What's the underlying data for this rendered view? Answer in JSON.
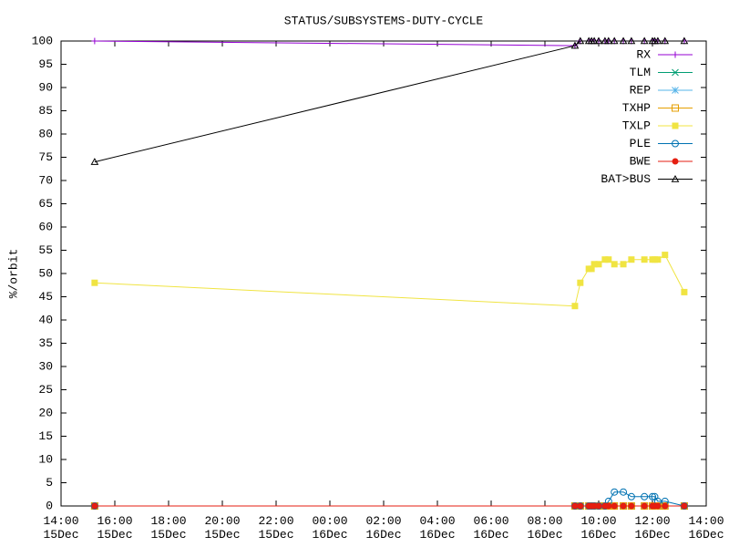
{
  "chart_data": {
    "type": "line",
    "title": "STATUS/SUBSYSTEMS-DUTY-CYCLE",
    "y_label": "%/orbit",
    "x": [
      "15Dec 15:15",
      "16Dec 09:07",
      "16Dec 09:19",
      "16Dec 09:38",
      "16Dec 09:44",
      "16Dec 09:50",
      "16Dec 10:00",
      "16Dec 10:14",
      "16Dec 10:22",
      "16Dec 10:35",
      "16Dec 10:55",
      "16Dec 11:13",
      "16Dec 11:42",
      "16Dec 12:00",
      "16Dec 12:05",
      "16Dec 12:12",
      "16Dec 12:28",
      "16Dec 13:11"
    ],
    "xlim": [
      "15Dec 14:00",
      "16Dec 14:00"
    ],
    "xticks": [
      {
        "value": "15Dec 14:00",
        "label": "14:00\n15Dec"
      },
      {
        "value": "15Dec 16:00",
        "label": "16:00\n15Dec"
      },
      {
        "value": "15Dec 18:00",
        "label": "18:00\n15Dec"
      },
      {
        "value": "15Dec 20:00",
        "label": "20:00\n15Dec"
      },
      {
        "value": "15Dec 22:00",
        "label": "22:00\n15Dec"
      },
      {
        "value": "16Dec 00:00",
        "label": "00:00\n16Dec"
      },
      {
        "value": "16Dec 02:00",
        "label": "02:00\n16Dec"
      },
      {
        "value": "16Dec 04:00",
        "label": "04:00\n16Dec"
      },
      {
        "value": "16Dec 06:00",
        "label": "06:00\n16Dec"
      },
      {
        "value": "16Dec 08:00",
        "label": "08:00\n16Dec"
      },
      {
        "value": "16Dec 10:00",
        "label": "10:00\n16Dec"
      },
      {
        "value": "16Dec 12:00",
        "label": "12:00\n16Dec"
      },
      {
        "value": "16Dec 14:00",
        "label": "14:00\n16Dec"
      }
    ],
    "ylim": [
      0,
      100
    ],
    "yticks": [
      0,
      5,
      10,
      15,
      20,
      25,
      30,
      35,
      40,
      45,
      50,
      55,
      60,
      65,
      70,
      75,
      80,
      85,
      90,
      95,
      100
    ],
    "grid": false,
    "legend": "top-right",
    "series": [
      {
        "name": "RX",
        "color": "#9400d3",
        "marker": "plus",
        "values": [
          100,
          99,
          100,
          100,
          100,
          100,
          100,
          100,
          100,
          100,
          100,
          100,
          100,
          100,
          100,
          100,
          100,
          100
        ]
      },
      {
        "name": "TLM",
        "color": "#009e73",
        "marker": "cross",
        "values": [
          0,
          0,
          0,
          0,
          0,
          0,
          0,
          0,
          0,
          0,
          0,
          0,
          0,
          0,
          0,
          0,
          0,
          0
        ]
      },
      {
        "name": "REP",
        "color": "#56b4e9",
        "marker": "star",
        "values": [
          0,
          0,
          0,
          0,
          0,
          0,
          0,
          0,
          0,
          0,
          0,
          0,
          0,
          0,
          0,
          0,
          0,
          0
        ]
      },
      {
        "name": "TXHP",
        "color": "#e69f00",
        "marker": "square",
        "values": [
          0,
          0,
          0,
          0,
          0,
          0,
          0,
          0,
          0,
          0,
          0,
          0,
          0,
          0,
          0,
          0,
          0,
          0
        ]
      },
      {
        "name": "TXLP",
        "color": "#f0e442",
        "marker": "filled-square",
        "values": [
          48,
          43,
          48,
          51,
          51,
          52,
          52,
          53,
          53,
          52,
          52,
          53,
          53,
          53,
          53,
          53,
          54,
          46
        ]
      },
      {
        "name": "PLE",
        "color": "#0072b2",
        "marker": "circle",
        "values": [
          0,
          0,
          0,
          0,
          0,
          0,
          0,
          0,
          1,
          3,
          3,
          2,
          2,
          2,
          2,
          1,
          1,
          0
        ]
      },
      {
        "name": "BWE",
        "color": "#e51e10",
        "marker": "filled-circle",
        "values": [
          0,
          0,
          0,
          0,
          0,
          0,
          0,
          0,
          0,
          0,
          0,
          0,
          0,
          0,
          0,
          0,
          0,
          0
        ]
      },
      {
        "name": "BAT>BUS",
        "color": "#000000",
        "marker": "triangle",
        "values": [
          74,
          99,
          100,
          100,
          100,
          100,
          100,
          100,
          100,
          100,
          100,
          100,
          100,
          100,
          100,
          100,
          100,
          100
        ]
      }
    ]
  }
}
